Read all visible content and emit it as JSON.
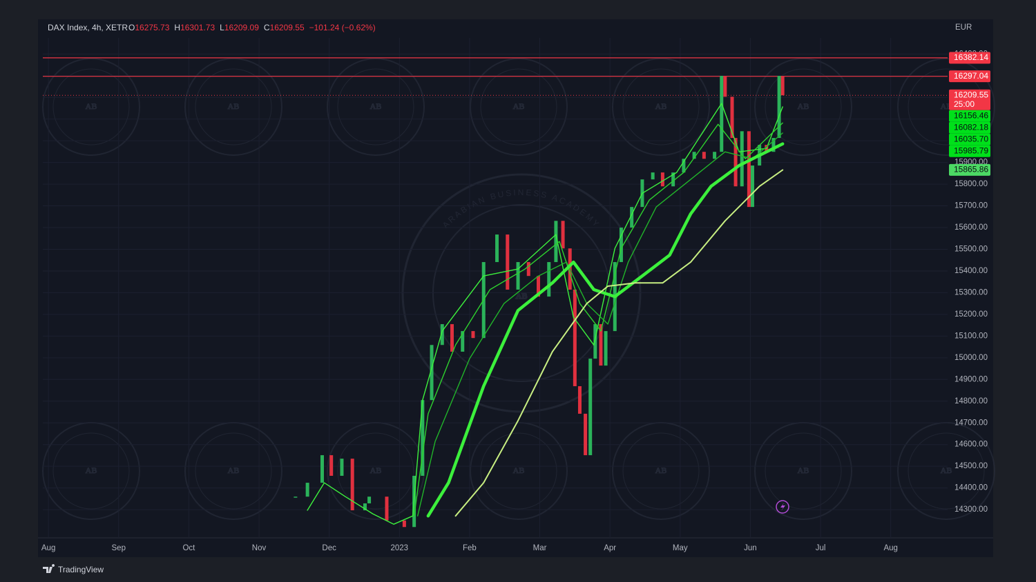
{
  "chart_data": {
    "type": "line",
    "title": "DAX Index, 4h, XETR",
    "ohlc": [
      {
        "label": "O",
        "value": 16275.73
      },
      {
        "label": "H",
        "value": 16301.73
      },
      {
        "label": "L",
        "value": 16209.09
      },
      {
        "label": "C",
        "value": 16209.55
      }
    ],
    "change": "−101.24 (−0.62%)",
    "currency": "EUR",
    "xlim": [
      -0.08,
      12.81
    ],
    "xticks": [
      {
        "value": 0,
        "label": "Aug"
      },
      {
        "value": 1,
        "label": "Sep"
      },
      {
        "value": 2,
        "label": "Oct"
      },
      {
        "value": 3,
        "label": "Nov"
      },
      {
        "value": 4,
        "label": "Dec"
      },
      {
        "value": 5,
        "label": "2023"
      },
      {
        "value": 6,
        "label": "Feb"
      },
      {
        "value": 7,
        "label": "Mar"
      },
      {
        "value": 8,
        "label": "Apr"
      },
      {
        "value": 9,
        "label": "May"
      },
      {
        "value": 10,
        "label": "Jun"
      },
      {
        "value": 11,
        "label": "Jul"
      },
      {
        "value": 12,
        "label": "Aug"
      }
    ],
    "ylim": [
      14170,
      16474
    ],
    "yticks": [
      {
        "value": 14300,
        "label": "14300.00"
      },
      {
        "value": 14400,
        "label": "14400.00"
      },
      {
        "value": 14500,
        "label": "14500.00"
      },
      {
        "value": 14600,
        "label": "14600.00"
      },
      {
        "value": 14700,
        "label": "14700.00"
      },
      {
        "value": 14800,
        "label": "14800.00"
      },
      {
        "value": 14900,
        "label": "14900.00"
      },
      {
        "value": 15000,
        "label": "15000.00"
      },
      {
        "value": 15100,
        "label": "15100.00"
      },
      {
        "value": 15200,
        "label": "15200.00"
      },
      {
        "value": 15300,
        "label": "15300.00"
      },
      {
        "value": 15400,
        "label": "15400.00"
      },
      {
        "value": 15500,
        "label": "15500.00"
      },
      {
        "value": 15600,
        "label": "15600.00"
      },
      {
        "value": 15700,
        "label": "15700.00"
      },
      {
        "value": 15800,
        "label": "15800.00"
      },
      {
        "value": 15900,
        "label": "15900.00"
      },
      {
        "value": 16000,
        "label": "16000.00"
      },
      {
        "value": 16100,
        "label": "16100.00"
      },
      {
        "value": 16200,
        "label": "16200.00"
      },
      {
        "value": 16300,
        "label": "16300.00"
      },
      {
        "value": 16400,
        "label": "16400.00"
      }
    ],
    "grid": true,
    "series": [
      {
        "style": "bars",
        "up_color": "#2bb35a",
        "down_color": "#e0303f",
        "x": [
          3.52,
          3.69,
          3.9,
          4.03,
          4.18,
          4.33,
          4.51,
          4.57,
          4.82,
          5.07,
          5.21,
          5.33,
          5.46,
          5.61,
          5.75,
          5.9,
          6.05,
          6.2,
          6.39,
          6.54,
          6.69,
          6.84,
          6.98,
          7.13,
          7.23,
          7.33,
          7.43,
          7.5,
          7.57,
          7.65,
          7.72,
          7.79,
          7.87,
          7.94,
          8.07,
          8.16,
          8.31,
          8.46,
          8.61,
          8.75,
          8.9,
          9.05,
          9.2,
          9.34,
          9.49,
          9.59,
          9.64,
          9.74,
          9.79,
          9.88,
          9.98,
          10.03,
          10.13,
          10.23,
          10.33,
          10.41,
          10.46
        ],
        "values": [
          14360,
          14424,
          14551,
          14456,
          14535,
          14297,
          14329,
          14360,
          14250,
          14220,
          14456,
          14805,
          15059,
          15155,
          15028,
          15123,
          15091,
          15441,
          15568,
          15314,
          15441,
          15377,
          15282,
          15441,
          15631,
          15504,
          15314,
          14869,
          14742,
          14551,
          14996,
          15155,
          14964,
          15123,
          15441,
          15600,
          15695,
          15822,
          15854,
          15790,
          15854,
          15917,
          15949,
          15917,
          15949,
          16299,
          16203,
          16013,
          15790,
          16044,
          15695,
          15886,
          15981,
          15949,
          16013,
          16299,
          16209.55
        ]
      },
      {
        "color": "#3df23d",
        "x": [
          3.69,
          3.93,
          4.23,
          4.62,
          4.92,
          5.19,
          5.33,
          5.61,
          6.2,
          6.69,
          7.23,
          7.48,
          7.77,
          8.07,
          8.46,
          8.95,
          9.59,
          9.84,
          10.23,
          10.46
        ],
        "values": [
          14297,
          14424,
          14360,
          14281,
          14233,
          14271,
          14805,
          15123,
          15377,
          15409,
          15568,
          15187,
          15059,
          15504,
          15758,
          15854,
          16172,
          15949,
          15965,
          16156.46
        ]
      },
      {
        "color": "#2ed12e",
        "x": [
          5.21,
          5.41,
          5.8,
          6.29,
          6.79,
          7.28,
          7.57,
          7.87,
          8.16,
          8.56,
          9.05,
          9.54,
          9.93,
          10.46
        ],
        "values": [
          14271,
          14742,
          15059,
          15314,
          15409,
          15536,
          15250,
          15123,
          15504,
          15727,
          15854,
          16076,
          15917,
          16082.18
        ]
      },
      {
        "color": "#21b52a",
        "x": [
          5.26,
          5.51,
          6.0,
          6.49,
          6.98,
          7.38,
          7.67,
          7.97,
          8.26,
          8.66,
          9.15,
          9.64,
          10.03,
          10.46
        ],
        "values": [
          14271,
          14615,
          14996,
          15250,
          15377,
          15441,
          15250,
          15155,
          15441,
          15695,
          15822,
          15949,
          15917,
          16035.7
        ]
      },
      {
        "color": "#3cf03c",
        "x": [
          5.41,
          5.7,
          6.2,
          6.69,
          7.18,
          7.48,
          7.77,
          8.07,
          8.46,
          8.85,
          9.15,
          9.44,
          9.84,
          10.13,
          10.46
        ],
        "values": [
          14271,
          14424,
          14869,
          15218,
          15345,
          15441,
          15314,
          15282,
          15377,
          15473,
          15663,
          15790,
          15886,
          15933,
          15985.79
        ]
      },
      {
        "color": "#c8ef82",
        "x": [
          5.8,
          6.2,
          6.69,
          7.18,
          7.67,
          7.97,
          8.36,
          8.75,
          9.15,
          9.64,
          10.13,
          10.46
        ],
        "values": [
          14271,
          14424,
          14710,
          15028,
          15250,
          15330,
          15345,
          15345,
          15441,
          15631,
          15790,
          15865.86
        ]
      }
    ],
    "levels": [
      {
        "value": 16382.14,
        "label": "16382.14",
        "color": "#f23645",
        "line": "solid"
      },
      {
        "value": 16297.04,
        "label": "16297.04",
        "color": "#f23645",
        "line": "solid"
      },
      {
        "value": 16209.55,
        "label": "16209.55",
        "color": "#f23645",
        "line": "dotted",
        "countdown": "25:00"
      },
      {
        "value": 16156.46,
        "label": "16156.46",
        "color": "#00e01a"
      },
      {
        "value": 16082.18,
        "label": "16082.18",
        "color": "#00e01a"
      },
      {
        "value": 16035.7,
        "label": "16035.70",
        "color": "#00e01a"
      },
      {
        "value": 15985.79,
        "label": "15985.79",
        "color": "#00e01a"
      },
      {
        "value": 15865.86,
        "label": "15865.86",
        "color": "#4cd964"
      }
    ],
    "watermark": {
      "initials": "AB",
      "name": "ARABIAN BUSINESS ACADEMY"
    },
    "brand": "TradingView"
  }
}
